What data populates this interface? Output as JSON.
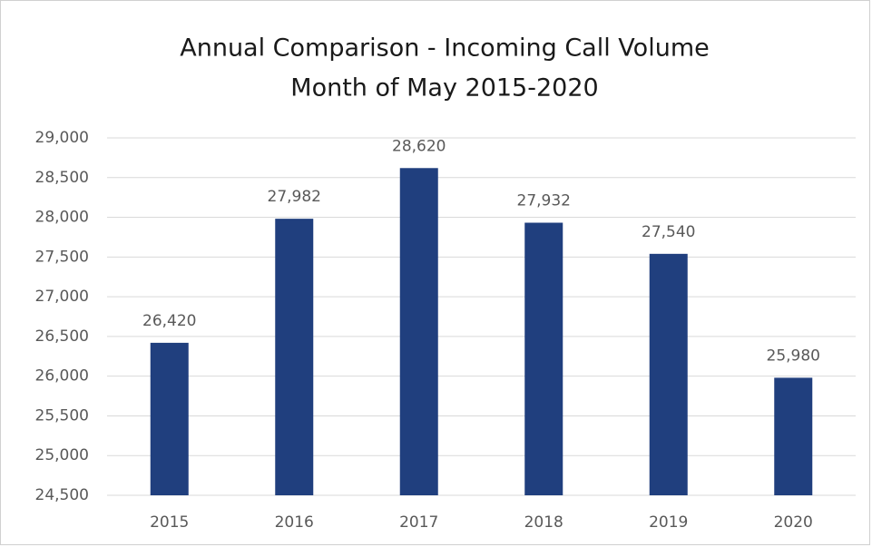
{
  "chart_data": {
    "type": "bar",
    "title": "Annual Comparison - Incoming Call Volume",
    "subtitle": "Month of May 2015-2020",
    "categories": [
      "2015",
      "2016",
      "2017",
      "2018",
      "2019",
      "2020"
    ],
    "values": [
      26420,
      27982,
      28620,
      27932,
      27540,
      25980
    ],
    "value_labels": [
      "26,420",
      "27,982",
      "28,620",
      "27,932",
      "27,540",
      "25,980"
    ],
    "color": "#203f7e",
    "ylim": [
      24500,
      29000
    ],
    "yticks": [
      {
        "value": 24500,
        "label": "24,500"
      },
      {
        "value": 25000,
        "label": "25,000"
      },
      {
        "value": 25500,
        "label": "25,500"
      },
      {
        "value": 26000,
        "label": "26,000"
      },
      {
        "value": 26500,
        "label": "26,500"
      },
      {
        "value": 27000,
        "label": "27,000"
      },
      {
        "value": 27500,
        "label": "27,500"
      },
      {
        "value": 28000,
        "label": "28,000"
      },
      {
        "value": 28500,
        "label": "28,500"
      },
      {
        "value": 29000,
        "label": "29,000"
      }
    ],
    "grid": true
  }
}
